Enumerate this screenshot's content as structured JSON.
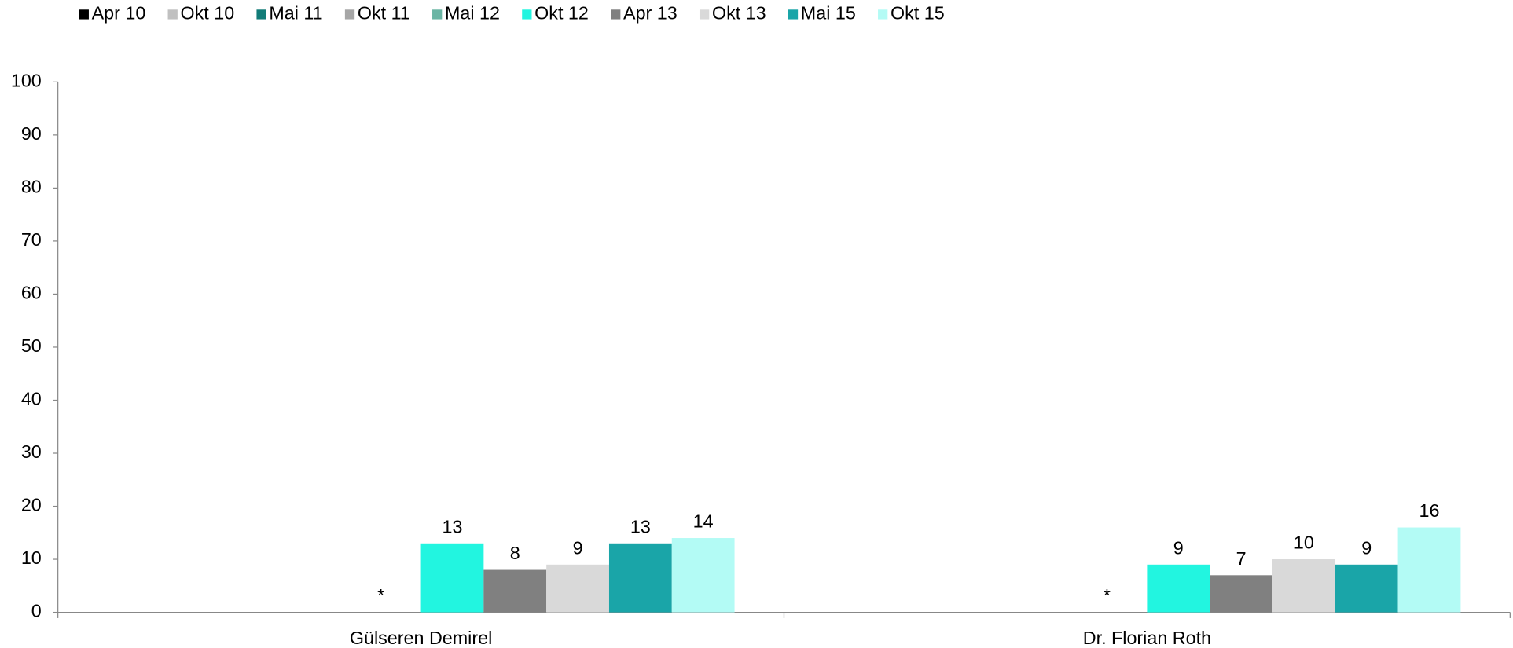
{
  "chart_data": {
    "type": "bar",
    "categories": [
      "Gülseren Demirel",
      "Dr. Florian Roth"
    ],
    "series": [
      {
        "name": "Apr 10",
        "color": "#000000",
        "values": [
          null,
          null
        ]
      },
      {
        "name": "Okt 10",
        "color": "#c0c0c0",
        "values": [
          null,
          null
        ]
      },
      {
        "name": "Mai 11",
        "color": "#127c78",
        "values": [
          null,
          null
        ]
      },
      {
        "name": "Okt 11",
        "color": "#a6a6a6",
        "values": [
          null,
          null
        ]
      },
      {
        "name": "Mai 12",
        "color": "#6ab5a4",
        "values": [
          null,
          null
        ],
        "value_labels": [
          "*",
          "*"
        ]
      },
      {
        "name": "Okt 12",
        "color": "#22f5e0",
        "values": [
          13,
          9
        ]
      },
      {
        "name": "Apr 13",
        "color": "#808080",
        "values": [
          8,
          7
        ]
      },
      {
        "name": "Okt 13",
        "color": "#d9d9d9",
        "values": [
          9,
          10
        ]
      },
      {
        "name": "Mai 15",
        "color": "#1aa5a8",
        "values": [
          13,
          9
        ]
      },
      {
        "name": "Okt 15",
        "color": "#b3fbf5",
        "values": [
          14,
          16
        ]
      }
    ],
    "ylim": [
      0,
      100
    ],
    "yticks": [
      0,
      10,
      20,
      30,
      40,
      50,
      60,
      70,
      80,
      90,
      100
    ],
    "legend": "top",
    "grid": false
  }
}
